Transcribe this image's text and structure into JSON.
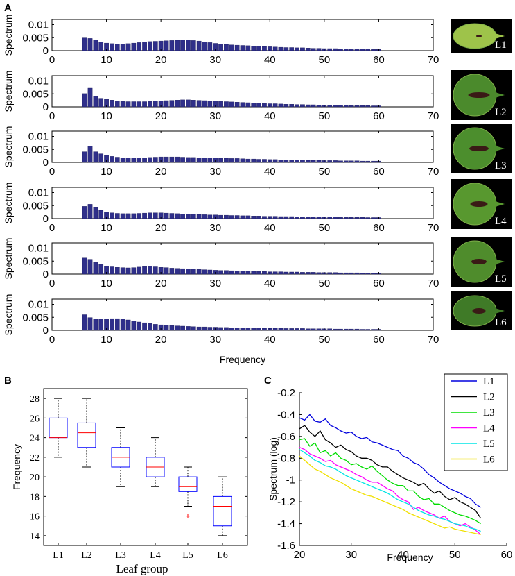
{
  "panels": {
    "A": "A",
    "B": "B",
    "C": "C"
  },
  "chart_data": [
    {
      "panel": "A",
      "type": "bar",
      "xlabel": "Frequency",
      "ylabel": "Spectrum",
      "xlim": [
        0,
        70
      ],
      "ylim": [
        0,
        0.012
      ],
      "xticks": [
        "0",
        "10",
        "20",
        "30",
        "40",
        "50",
        "60",
        "70"
      ],
      "yticks": [
        "0",
        "0.005",
        "0.01"
      ],
      "bar_color": "#2f2f8a",
      "x": [
        6,
        7,
        8,
        9,
        10,
        11,
        12,
        13,
        14,
        15,
        16,
        17,
        18,
        19,
        20,
        21,
        22,
        23,
        24,
        25,
        26,
        27,
        28,
        29,
        30,
        31,
        32,
        33,
        34,
        35,
        36,
        37,
        38,
        39,
        40,
        41,
        42,
        43,
        44,
        45,
        46,
        47,
        48,
        49,
        50,
        51,
        52,
        53,
        54,
        55,
        56,
        57,
        58,
        59,
        60
      ],
      "series": [
        {
          "name": "L1",
          "values": [
            0.0049,
            0.0047,
            0.0042,
            0.0033,
            0.0029,
            0.0027,
            0.0026,
            0.0026,
            0.0027,
            0.0029,
            0.0031,
            0.0033,
            0.0035,
            0.0036,
            0.0037,
            0.0038,
            0.0039,
            0.004,
            0.0042,
            0.0041,
            0.0039,
            0.0037,
            0.0034,
            0.0031,
            0.0028,
            0.0026,
            0.0024,
            0.0022,
            0.0021,
            0.002,
            0.0019,
            0.0018,
            0.0017,
            0.0016,
            0.0015,
            0.0014,
            0.0013,
            0.0012,
            0.0012,
            0.0011,
            0.0011,
            0.001,
            0.0009,
            0.0009,
            0.0008,
            0.0008,
            0.0008,
            0.0007,
            0.0007,
            0.0007,
            0.0006,
            0.0006,
            0.0006,
            0.0005,
            0.0005
          ]
        },
        {
          "name": "L2",
          "values": [
            0.0051,
            0.0072,
            0.0042,
            0.0033,
            0.0029,
            0.0026,
            0.0023,
            0.0021,
            0.002,
            0.002,
            0.002,
            0.002,
            0.0021,
            0.0022,
            0.0023,
            0.0024,
            0.0025,
            0.0026,
            0.0027,
            0.0027,
            0.0026,
            0.0025,
            0.0024,
            0.0023,
            0.0022,
            0.0021,
            0.002,
            0.0019,
            0.0018,
            0.0017,
            0.0016,
            0.0015,
            0.0014,
            0.0013,
            0.0012,
            0.0012,
            0.0011,
            0.001,
            0.001,
            0.0009,
            0.0009,
            0.0008,
            0.0008,
            0.0007,
            0.0007,
            0.0007,
            0.0006,
            0.0006,
            0.0006,
            0.0005,
            0.0005,
            0.0005,
            0.0005,
            0.0004,
            0.0004
          ]
        },
        {
          "name": "L3",
          "values": [
            0.0041,
            0.0062,
            0.0041,
            0.0033,
            0.0027,
            0.0023,
            0.002,
            0.0018,
            0.0017,
            0.0017,
            0.0017,
            0.0018,
            0.0019,
            0.002,
            0.0021,
            0.0021,
            0.0021,
            0.0021,
            0.002,
            0.0019,
            0.0019,
            0.0018,
            0.0018,
            0.0017,
            0.0017,
            0.0016,
            0.0016,
            0.0015,
            0.0015,
            0.0014,
            0.0013,
            0.0013,
            0.0012,
            0.0012,
            0.0011,
            0.0011,
            0.001,
            0.001,
            0.0009,
            0.0009,
            0.0009,
            0.0008,
            0.0008,
            0.0008,
            0.0007,
            0.0007,
            0.0007,
            0.0006,
            0.0006,
            0.0006,
            0.0006,
            0.0005,
            0.0005,
            0.0005,
            0.0005
          ]
        },
        {
          "name": "L4",
          "values": [
            0.0047,
            0.0055,
            0.0043,
            0.0032,
            0.0026,
            0.0022,
            0.002,
            0.0019,
            0.0019,
            0.0019,
            0.002,
            0.0021,
            0.0022,
            0.0022,
            0.0022,
            0.0021,
            0.002,
            0.0019,
            0.0018,
            0.0017,
            0.0017,
            0.0016,
            0.0015,
            0.0014,
            0.0014,
            0.0013,
            0.0013,
            0.0012,
            0.0012,
            0.0011,
            0.0011,
            0.001,
            0.001,
            0.0009,
            0.0009,
            0.0009,
            0.0008,
            0.0008,
            0.0008,
            0.0007,
            0.0007,
            0.0007,
            0.0007,
            0.0006,
            0.0006,
            0.0006,
            0.0006,
            0.0005,
            0.0005,
            0.0005,
            0.0005,
            0.0005,
            0.0004,
            0.0004,
            0.0004
          ]
        },
        {
          "name": "L5",
          "values": [
            0.0062,
            0.0057,
            0.0045,
            0.0037,
            0.0031,
            0.0028,
            0.0026,
            0.0025,
            0.0024,
            0.0025,
            0.0027,
            0.0029,
            0.003,
            0.0028,
            0.0026,
            0.0025,
            0.0023,
            0.0022,
            0.0021,
            0.002,
            0.0019,
            0.0018,
            0.0017,
            0.0016,
            0.0015,
            0.0014,
            0.0014,
            0.0013,
            0.0012,
            0.0012,
            0.0011,
            0.0011,
            0.001,
            0.001,
            0.0009,
            0.0009,
            0.0009,
            0.0008,
            0.0008,
            0.0008,
            0.0007,
            0.0007,
            0.0007,
            0.0006,
            0.0006,
            0.0006,
            0.0006,
            0.0005,
            0.0005,
            0.0005,
            0.0005,
            0.0004,
            0.0004,
            0.0004,
            0.0004
          ]
        },
        {
          "name": "L6",
          "values": [
            0.006,
            0.0049,
            0.0044,
            0.0043,
            0.0043,
            0.0045,
            0.0045,
            0.0043,
            0.004,
            0.0036,
            0.0032,
            0.0029,
            0.0026,
            0.0023,
            0.0021,
            0.0019,
            0.0018,
            0.0017,
            0.0016,
            0.0015,
            0.0014,
            0.0013,
            0.0013,
            0.0012,
            0.0012,
            0.0011,
            0.0011,
            0.001,
            0.001,
            0.001,
            0.0009,
            0.0009,
            0.0009,
            0.0008,
            0.0008,
            0.0008,
            0.0008,
            0.0007,
            0.0007,
            0.0007,
            0.0007,
            0.0006,
            0.0006,
            0.0006,
            0.0006,
            0.0006,
            0.0005,
            0.0005,
            0.0005,
            0.0005,
            0.0005,
            0.0004,
            0.0004,
            0.0004,
            0.0004
          ]
        }
      ]
    },
    {
      "panel": "B",
      "type": "box",
      "xlabel": "Leaf group",
      "ylabel": "Frequency",
      "ylim": [
        13,
        29
      ],
      "yticks": [
        "14",
        "16",
        "18",
        "20",
        "22",
        "24",
        "26",
        "28"
      ],
      "categories": [
        "L1",
        "L2",
        "L3",
        "L4",
        "L5",
        "L6"
      ],
      "box_color": "#0000ff",
      "median_color": "#ff0000",
      "boxes": [
        {
          "whisker_low": 22,
          "q1": 24,
          "median": 24,
          "q3": 26,
          "whisker_high": 28,
          "outliers": []
        },
        {
          "whisker_low": 21,
          "q1": 23,
          "median": 24.5,
          "q3": 25.5,
          "whisker_high": 28,
          "outliers": []
        },
        {
          "whisker_low": 19,
          "q1": 21,
          "median": 22,
          "q3": 23,
          "whisker_high": 25,
          "outliers": []
        },
        {
          "whisker_low": 19,
          "q1": 20,
          "median": 21,
          "q3": 22,
          "whisker_high": 24,
          "outliers": []
        },
        {
          "whisker_low": 17,
          "q1": 18.5,
          "median": 19,
          "q3": 20,
          "whisker_high": 21,
          "outliers": [
            16
          ]
        },
        {
          "whisker_low": 14,
          "q1": 15,
          "median": 17,
          "q3": 18,
          "whisker_high": 20,
          "outliers": []
        }
      ]
    },
    {
      "panel": "C",
      "type": "line",
      "xlabel": "Frequency",
      "ylabel": "Spectrum (log)",
      "xlim": [
        20,
        60
      ],
      "ylim": [
        -1.6,
        -0.2
      ],
      "xticks": [
        "20",
        "30",
        "40",
        "50",
        "60"
      ],
      "yticks": [
        "-0.2",
        "-0.4",
        "-0.6",
        "-0.8",
        "-1",
        "-1.2",
        "-1.4",
        "-1.6"
      ],
      "legend_position": "top-right",
      "x": [
        20,
        21,
        22,
        23,
        24,
        25,
        26,
        27,
        28,
        29,
        30,
        31,
        32,
        33,
        34,
        35,
        36,
        37,
        38,
        39,
        40,
        41,
        42,
        43,
        44,
        45,
        46,
        47,
        48,
        49,
        50,
        51,
        52,
        53,
        54,
        55
      ],
      "series": [
        {
          "name": "L1",
          "color": "#0000dd",
          "values": [
            -0.43,
            -0.45,
            -0.4,
            -0.46,
            -0.47,
            -0.44,
            -0.5,
            -0.52,
            -0.55,
            -0.57,
            -0.56,
            -0.6,
            -0.62,
            -0.61,
            -0.65,
            -0.66,
            -0.68,
            -0.7,
            -0.72,
            -0.73,
            -0.78,
            -0.8,
            -0.84,
            -0.86,
            -0.9,
            -0.95,
            -0.98,
            -1.02,
            -1.05,
            -1.08,
            -1.1,
            -1.12,
            -1.15,
            -1.17,
            -1.22,
            -1.25
          ]
        },
        {
          "name": "L2",
          "color": "#000000",
          "values": [
            -0.53,
            -0.5,
            -0.56,
            -0.6,
            -0.55,
            -0.63,
            -0.66,
            -0.7,
            -0.68,
            -0.72,
            -0.74,
            -0.78,
            -0.8,
            -0.8,
            -0.82,
            -0.86,
            -0.88,
            -0.88,
            -0.92,
            -0.95,
            -0.98,
            -1.0,
            -1.02,
            -1.05,
            -1.03,
            -1.08,
            -1.12,
            -1.1,
            -1.15,
            -1.18,
            -1.16,
            -1.2,
            -1.22,
            -1.25,
            -1.28,
            -1.35
          ]
        },
        {
          "name": "L3",
          "color": "#00dd00",
          "values": [
            -0.63,
            -0.62,
            -0.69,
            -0.66,
            -0.75,
            -0.73,
            -0.78,
            -0.75,
            -0.8,
            -0.82,
            -0.86,
            -0.85,
            -0.88,
            -0.9,
            -0.87,
            -0.92,
            -0.96,
            -1.0,
            -1.03,
            -1.05,
            -1.05,
            -1.1,
            -1.1,
            -1.15,
            -1.18,
            -1.17,
            -1.22,
            -1.22,
            -1.25,
            -1.28,
            -1.3,
            -1.32,
            -1.33,
            -1.35,
            -1.37,
            -1.4
          ]
        },
        {
          "name": "L4",
          "color": "#ff00ff",
          "values": [
            -0.7,
            -0.72,
            -0.76,
            -0.78,
            -0.8,
            -0.83,
            -0.82,
            -0.86,
            -0.88,
            -0.9,
            -0.92,
            -0.95,
            -0.97,
            -1.0,
            -1.02,
            -1.02,
            -1.05,
            -1.08,
            -1.1,
            -1.15,
            -1.18,
            -1.2,
            -1.27,
            -1.25,
            -1.28,
            -1.3,
            -1.32,
            -1.35,
            -1.33,
            -1.38,
            -1.4,
            -1.42,
            -1.4,
            -1.43,
            -1.46,
            -1.5
          ]
        },
        {
          "name": "L5",
          "color": "#00e5e5",
          "values": [
            -0.72,
            -0.75,
            -0.78,
            -0.82,
            -0.84,
            -0.87,
            -0.88,
            -0.9,
            -0.93,
            -0.96,
            -0.98,
            -1.0,
            -1.02,
            -1.04,
            -1.06,
            -1.08,
            -1.1,
            -1.12,
            -1.15,
            -1.18,
            -1.2,
            -1.22,
            -1.25,
            -1.28,
            -1.3,
            -1.32,
            -1.33,
            -1.35,
            -1.36,
            -1.38,
            -1.4,
            -1.41,
            -1.42,
            -1.44,
            -1.45,
            -1.47
          ]
        },
        {
          "name": "L6",
          "color": "#f0e000",
          "values": [
            -0.78,
            -0.82,
            -0.86,
            -0.9,
            -0.92,
            -0.95,
            -0.98,
            -1.0,
            -1.02,
            -1.05,
            -1.08,
            -1.1,
            -1.12,
            -1.14,
            -1.15,
            -1.17,
            -1.19,
            -1.21,
            -1.23,
            -1.25,
            -1.27,
            -1.3,
            -1.32,
            -1.34,
            -1.36,
            -1.38,
            -1.4,
            -1.42,
            -1.44,
            -1.43,
            -1.45,
            -1.46,
            -1.47,
            -1.48,
            -1.49,
            -1.5
          ]
        }
      ]
    }
  ],
  "leaf_images": [
    {
      "label": "L1",
      "leaf_color": "#9ec34a"
    },
    {
      "label": "L2",
      "leaf_color": "#4b8a2c"
    },
    {
      "label": "L3",
      "leaf_color": "#4c8e2d"
    },
    {
      "label": "L4",
      "leaf_color": "#58982f"
    },
    {
      "label": "L5",
      "leaf_color": "#4f8c2c"
    },
    {
      "label": "L6",
      "leaf_color": "#3f7a27"
    }
  ]
}
